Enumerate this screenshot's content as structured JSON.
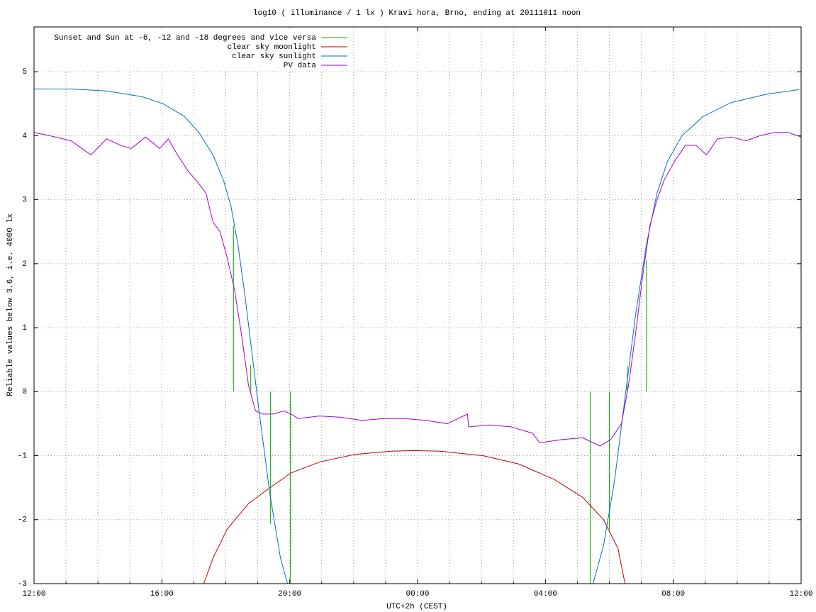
{
  "chart_data": {
    "type": "line",
    "title": "log10 ( illuminance / 1 lx ) Kravi hora, Brno, ending at 20111011 noon",
    "x_label": "UTC+2h (CEST)",
    "y_label": "Reliable values below 3.6, i.e. 4000 lx",
    "xlim": [
      0,
      24
    ],
    "ylim": [
      -3,
      5.7
    ],
    "xticks": [
      {
        "value": 0,
        "label": "12:00"
      },
      {
        "value": 4,
        "label": "16:00"
      },
      {
        "value": 8,
        "label": "20:00"
      },
      {
        "value": 12,
        "label": "00:00"
      },
      {
        "value": 16,
        "label": "04:00"
      },
      {
        "value": 20,
        "label": "08:00"
      },
      {
        "value": 24,
        "label": "12:00"
      }
    ],
    "minor_xticks": [
      1,
      2,
      3,
      5,
      6,
      7,
      9,
      10,
      11,
      13,
      14,
      15,
      17,
      18,
      19,
      21,
      22,
      23
    ],
    "yticks": [
      -3,
      -2,
      -1,
      0,
      1,
      2,
      3,
      4,
      5
    ],
    "grid": true,
    "legend": "top-left",
    "series": [
      {
        "name": "Sunset and Sun at -6, -12 and -18 degrees and vice versa",
        "color": "#00b000",
        "x": [
          6.24,
          6.24,
          6.24,
          6.78,
          6.78,
          6.78,
          7.4,
          7.4,
          7.4,
          8.02,
          8.02,
          8.02,
          17.4,
          17.4,
          17.4,
          18.0,
          18.0,
          18.0,
          18.56,
          18.56,
          18.56,
          19.16,
          19.16
        ],
        "values": [
          0,
          2.59,
          null,
          0,
          0.42,
          null,
          0,
          -2.07,
          null,
          0,
          -3,
          null,
          0,
          -3,
          null,
          0,
          -2.15,
          null,
          0,
          0.4,
          null,
          0,
          2.06
        ]
      },
      {
        "name": "clear sky moonlight",
        "color": "#c00000",
        "x": [
          5.31,
          5.6,
          6.04,
          6.71,
          7.38,
          8.04,
          8.93,
          10.04,
          11.16,
          11.89,
          12.71,
          14.04,
          15.16,
          16.27,
          17.16,
          17.82,
          18.27,
          18.49
        ],
        "values": [
          -3,
          -2.6,
          -2.15,
          -1.75,
          -1.5,
          -1.27,
          -1.1,
          -0.98,
          -0.93,
          -0.92,
          -0.93,
          -1.0,
          -1.13,
          -1.37,
          -1.65,
          -2.0,
          -2.45,
          -3
        ]
      },
      {
        "name": "clear sky sunlight",
        "color": "#0070c0",
        "x": [
          0,
          1.16,
          2.27,
          3.38,
          4.04,
          4.71,
          5.16,
          5.6,
          5.93,
          6.16,
          6.38,
          6.6,
          6.82,
          7.04,
          7.38,
          7.71,
          7.93,
          12,
          17.49,
          17.82,
          18.16,
          18.49,
          18.82,
          19.16,
          19.49,
          19.82,
          20.27,
          20.93,
          21.82,
          22.93,
          23.93
        ],
        "values": [
          4.73,
          4.73,
          4.7,
          4.61,
          4.5,
          4.3,
          4.05,
          3.7,
          3.3,
          2.9,
          2.3,
          1.5,
          0.6,
          -0.3,
          -1.6,
          -2.6,
          -3,
          null,
          -3,
          -2.4,
          -1.4,
          -0.1,
          1.2,
          2.3,
          3.1,
          3.6,
          4.0,
          4.3,
          4.52,
          4.65,
          4.72
        ]
      },
      {
        "name": "PV data",
        "color": "#a000d0",
        "x": [
          0,
          0.49,
          1.16,
          1.78,
          2.27,
          2.71,
          3.04,
          3.49,
          3.93,
          4.2,
          4.49,
          4.82,
          5.16,
          5.38,
          5.6,
          5.82,
          6.04,
          6.27,
          6.49,
          6.71,
          6.93,
          7.16,
          7.49,
          7.82,
          8.04,
          8.27,
          8.93,
          9.6,
          10.27,
          10.93,
          11.6,
          12.27,
          12.93,
          13.56,
          13.6,
          14.27,
          14.93,
          15.6,
          15.82,
          16.49,
          17.16,
          17.71,
          18.04,
          18.38,
          18.6,
          18.82,
          19.04,
          19.27,
          19.49,
          19.71,
          20.04,
          20.38,
          20.71,
          21.04,
          21.38,
          21.82,
          22.27,
          22.71,
          23.16,
          23.6,
          24
        ],
        "values": [
          4.05,
          4.0,
          3.92,
          3.7,
          3.95,
          3.85,
          3.8,
          3.98,
          3.8,
          3.95,
          3.7,
          3.45,
          3.25,
          3.1,
          2.65,
          2.5,
          2.1,
          1.6,
          0.9,
          0.1,
          -0.3,
          -0.35,
          -0.35,
          -0.3,
          -0.35,
          -0.42,
          -0.38,
          -0.4,
          -0.45,
          -0.42,
          -0.42,
          -0.45,
          -0.5,
          -0.35,
          -0.55,
          -0.52,
          -0.55,
          -0.65,
          -0.8,
          -0.75,
          -0.72,
          -0.85,
          -0.75,
          -0.5,
          0.1,
          0.9,
          1.8,
          2.6,
          3.0,
          3.3,
          3.6,
          3.85,
          3.85,
          3.7,
          3.95,
          3.98,
          3.92,
          4.0,
          4.05,
          4.05,
          3.98
        ]
      }
    ]
  }
}
